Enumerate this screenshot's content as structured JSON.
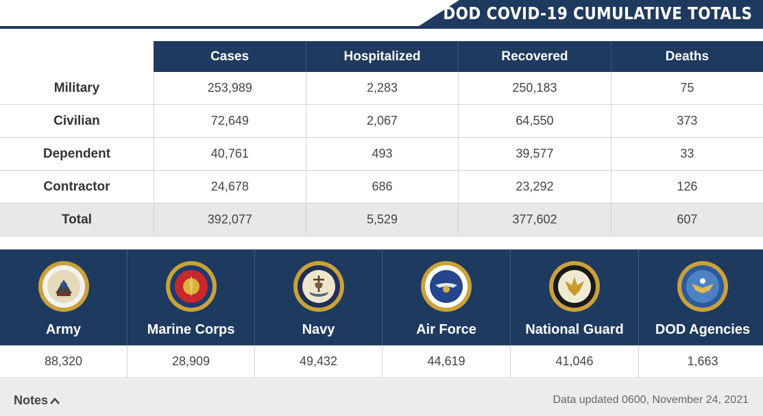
{
  "header": {
    "title": "DOD COVID-19 CUMULATIVE TOTALS"
  },
  "totals_table": {
    "columns": [
      "Cases",
      "Hospitalized",
      "Recovered",
      "Deaths"
    ],
    "rows": [
      {
        "label": "Military",
        "values": [
          "253,989",
          "2,283",
          "250,183",
          "75"
        ]
      },
      {
        "label": "Civilian",
        "values": [
          "72,649",
          "2,067",
          "64,550",
          "373"
        ]
      },
      {
        "label": "Dependent",
        "values": [
          "40,761",
          "493",
          "39,577",
          "33"
        ]
      },
      {
        "label": "Contractor",
        "values": [
          "24,678",
          "686",
          "23,292",
          "126"
        ]
      },
      {
        "label": "Total",
        "values": [
          "392,077",
          "5,529",
          "377,602",
          "607"
        ]
      }
    ]
  },
  "branches": [
    {
      "name": "Army",
      "value": "88,320",
      "icon": "army-seal-icon"
    },
    {
      "name": "Marine Corps",
      "value": "28,909",
      "icon": "marine-corps-seal-icon"
    },
    {
      "name": "Navy",
      "value": "49,432",
      "icon": "navy-seal-icon"
    },
    {
      "name": "Air Force",
      "value": "44,619",
      "icon": "air-force-seal-icon"
    },
    {
      "name": "National Guard",
      "value": "41,046",
      "icon": "national-guard-seal-icon"
    },
    {
      "name": "DOD Agencies",
      "value": "1,663",
      "icon": "dod-seal-icon"
    }
  ],
  "footer": {
    "notes_label": "Notes",
    "updated": "Data updated 0600, November 24, 2021"
  },
  "colors": {
    "navy": "#1f3a5f",
    "total_row": "#e8e8e8",
    "footer": "#ececec"
  }
}
